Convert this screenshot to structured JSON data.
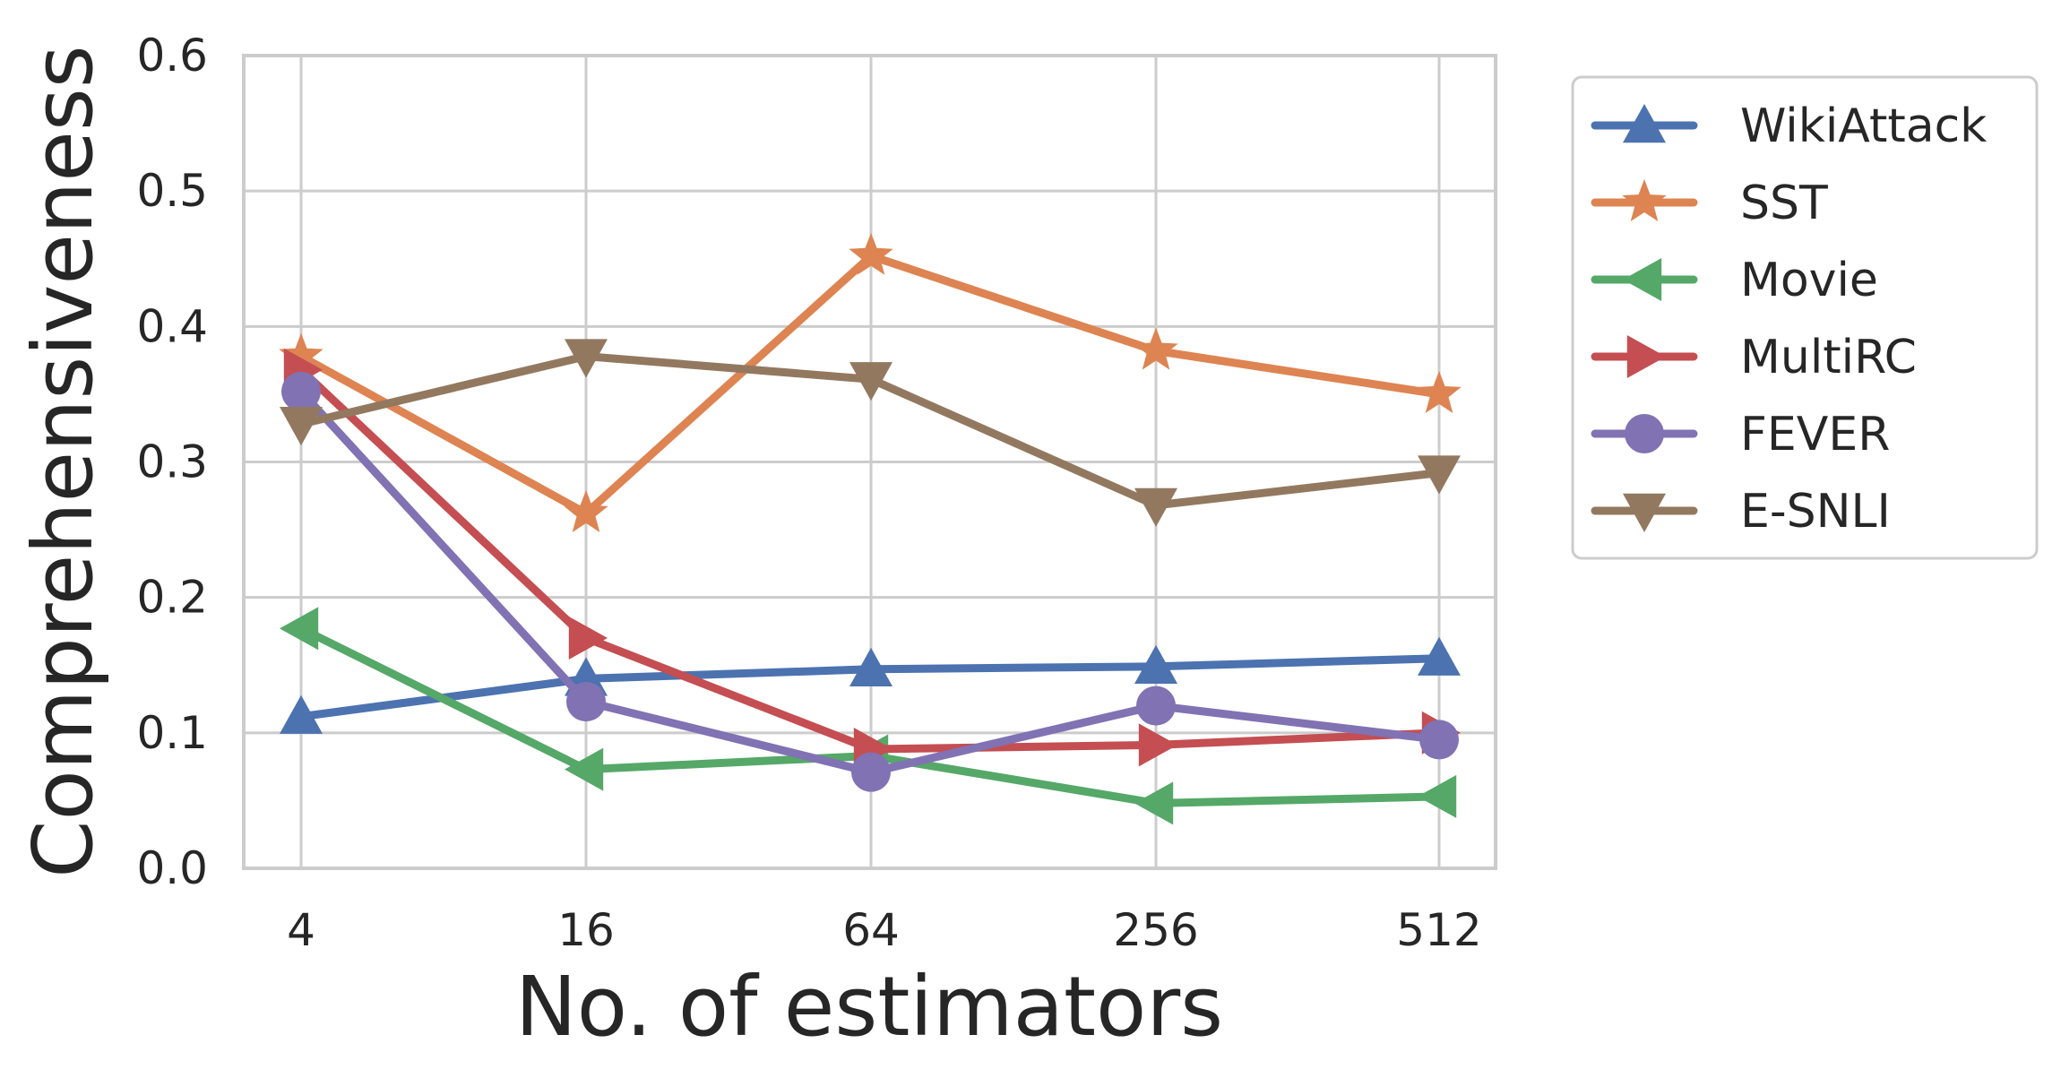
{
  "chart_data": {
    "type": "line",
    "title": "",
    "xlabel": "No. of estimators",
    "ylabel": "Comprehensiveness",
    "categories": [
      "4",
      "16",
      "64",
      "256",
      "512"
    ],
    "ylim": [
      0.0,
      0.6
    ],
    "yticks": [
      "0.0",
      "0.1",
      "0.2",
      "0.3",
      "0.4",
      "0.5",
      "0.6"
    ],
    "grid": true,
    "legend_position": "outside-top-right",
    "series": [
      {
        "name": "WikiAttack",
        "color": "#4c72b0",
        "marker": "triangle-up",
        "values": [
          0.112,
          0.14,
          0.147,
          0.149,
          0.155
        ]
      },
      {
        "name": "SST",
        "color": "#dd8452",
        "marker": "star",
        "values": [
          0.378,
          0.262,
          0.452,
          0.382,
          0.35
        ]
      },
      {
        "name": "Movie",
        "color": "#55a868",
        "marker": "triangle-left",
        "values": [
          0.177,
          0.073,
          0.083,
          0.048,
          0.053
        ]
      },
      {
        "name": "MultiRC",
        "color": "#c44e52",
        "marker": "triangle-right",
        "values": [
          0.368,
          0.17,
          0.088,
          0.091,
          0.1
        ]
      },
      {
        "name": "FEVER",
        "color": "#8172b3",
        "marker": "circle",
        "values": [
          0.352,
          0.123,
          0.071,
          0.12,
          0.095
        ]
      },
      {
        "name": "E-SNLI",
        "color": "#937860",
        "marker": "triangle-down",
        "values": [
          0.328,
          0.378,
          0.361,
          0.268,
          0.292
        ]
      }
    ]
  }
}
